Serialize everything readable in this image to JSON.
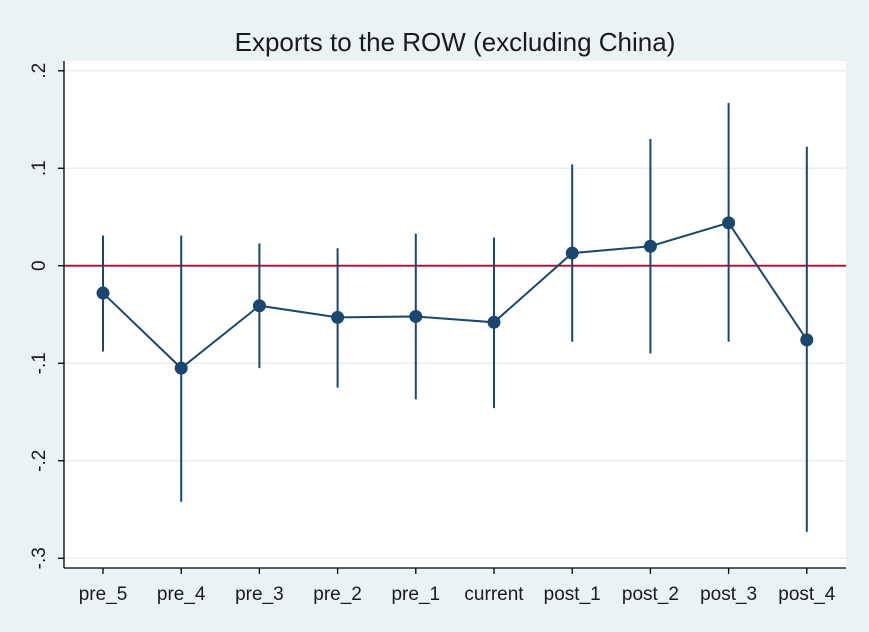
{
  "chart_data": {
    "type": "line",
    "title": "Exports to the ROW (excluding China)",
    "categories": [
      "pre_5",
      "pre_4",
      "pre_3",
      "pre_2",
      "pre_1",
      "current",
      "post_1",
      "post_2",
      "post_3",
      "post_4"
    ],
    "y_tick_labels": [
      ".2",
      ".1",
      "0",
      "-.1",
      "-.2",
      "-.3"
    ],
    "y_ticks": [
      0.2,
      0.1,
      0,
      -0.1,
      -0.2,
      -0.3
    ],
    "ylim": [
      -0.31,
      0.21
    ],
    "grid": true,
    "reference_line": 0,
    "series": [
      {
        "values": [
          -0.028,
          -0.105,
          -0.041,
          -0.053,
          -0.052,
          -0.058,
          0.013,
          0.02,
          0.044,
          -0.076
        ],
        "ci_low": [
          -0.088,
          -0.242,
          -0.105,
          -0.125,
          -0.137,
          -0.146,
          -0.078,
          -0.09,
          -0.078,
          -0.273
        ],
        "ci_high": [
          0.031,
          0.031,
          0.023,
          0.018,
          0.033,
          0.029,
          0.104,
          0.13,
          0.167,
          0.122
        ]
      }
    ],
    "colors": {
      "outer_background": "#eaf2f3",
      "plot_background": "#ffffff",
      "series": "#1a476f",
      "reference_line": "#b0173b",
      "grid": "#e8eef0",
      "axis": "#000000"
    }
  }
}
